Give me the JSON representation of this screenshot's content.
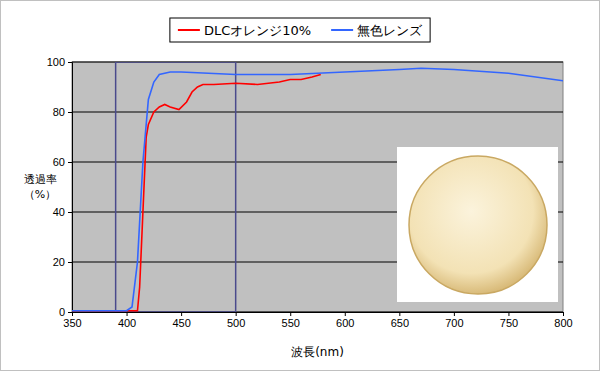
{
  "chart_data": {
    "type": "line",
    "x_label": "波長(nm)",
    "y_label": [
      "透過率",
      "（%）"
    ],
    "xlim": [
      350,
      800
    ],
    "xticks": [
      350,
      400,
      450,
      500,
      550,
      600,
      650,
      700,
      750,
      800
    ],
    "ylim": [
      0,
      100
    ],
    "yticks": [
      0,
      20,
      40,
      60,
      80,
      100
    ],
    "grid": true,
    "legend": "top",
    "highlight_range": [
      390,
      500
    ],
    "series": [
      {
        "name": "DLCオレンジ10%",
        "color": "#ff0000",
        "x": [
          350,
          380,
          400,
          410,
          412,
          415,
          418,
          420,
          425,
          430,
          435,
          440,
          448,
          455,
          460,
          465,
          470,
          480,
          500,
          520,
          540,
          550,
          560,
          570,
          578
        ],
        "values": [
          0.5,
          0.5,
          0.5,
          0.5,
          10,
          40,
          70,
          75,
          80,
          82,
          83,
          82,
          81,
          84,
          88,
          90,
          91,
          91,
          91.5,
          91,
          92,
          93,
          93,
          94,
          95
        ]
      },
      {
        "name": "無色レンズ",
        "color": "#3366ff",
        "x": [
          350,
          380,
          400,
          405,
          410,
          415,
          420,
          425,
          430,
          440,
          450,
          500,
          550,
          600,
          650,
          670,
          700,
          750,
          800
        ],
        "values": [
          0.5,
          0.5,
          0.5,
          2,
          20,
          60,
          85,
          92,
          95,
          96,
          96,
          95,
          95,
          96,
          97,
          97.5,
          97,
          95.5,
          92.5
        ]
      }
    ]
  }
}
